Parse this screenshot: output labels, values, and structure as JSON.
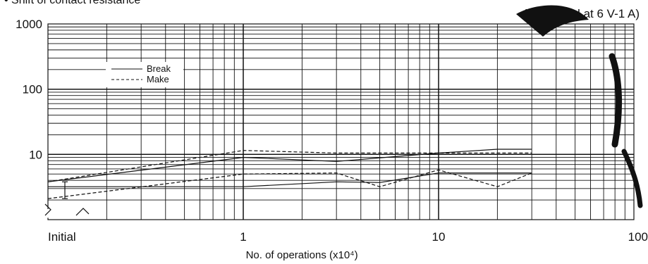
{
  "header": {
    "title": "• Shift of contact resistance",
    "condition": "(measured at 6 V-1 A)"
  },
  "chart_data": {
    "type": "line",
    "title": "• Shift of contact resistance",
    "subtitle": "(measured at 6 V-1 A)",
    "xlabel": "No. of operations (x10⁴)",
    "ylabel": "",
    "x_scale": "log",
    "y_scale": "log",
    "xlim": [
      0.1,
      100
    ],
    "ylim": [
      1,
      1000
    ],
    "x_ticks": [
      {
        "value": 0.1,
        "label": "Initial"
      },
      {
        "value": 1,
        "label": "1"
      },
      {
        "value": 10,
        "label": "10"
      },
      {
        "value": 100,
        "label": "100"
      }
    ],
    "y_ticks": [
      {
        "value": 10,
        "label": "10"
      },
      {
        "value": 100,
        "label": "100"
      },
      {
        "value": 1000,
        "label": "1000"
      }
    ],
    "grid": true,
    "axis_break": "lower-left",
    "legend": {
      "placement": "top-left",
      "entries": [
        {
          "name": "Break",
          "style": "solid"
        },
        {
          "name": "Make",
          "style": "dashed"
        }
      ]
    },
    "series": [
      {
        "name": "Break",
        "style": "solid",
        "role": "max",
        "x": [
          0.1,
          1,
          3,
          10,
          20,
          30
        ],
        "y": [
          3.8,
          9.0,
          7.8,
          10.5,
          12.0,
          12.0
        ]
      },
      {
        "name": "Break",
        "style": "solid",
        "role": "min",
        "x": [
          0.1,
          1,
          3,
          5,
          10,
          20,
          30
        ],
        "y": [
          3.2,
          3.2,
          3.8,
          3.7,
          5.2,
          5.2,
          5.2
        ]
      },
      {
        "name": "Make",
        "style": "dashed",
        "role": "max",
        "x": [
          0.1,
          1,
          3,
          10,
          20,
          30
        ],
        "y": [
          3.8,
          11.5,
          10.5,
          10.5,
          10.5,
          10.5
        ]
      },
      {
        "name": "Make",
        "style": "dashed",
        "role": "min",
        "x": [
          0.1,
          1,
          3,
          5,
          10,
          20,
          30
        ],
        "y": [
          2.1,
          5.0,
          5.2,
          3.2,
          5.8,
          3.2,
          5.2
        ]
      }
    ],
    "initial_range_bar": {
      "x": 0.1,
      "y": [
        2.1,
        3.8
      ]
    },
    "colors": {
      "line": "#111111",
      "grid": "#111111",
      "background": "#ffffff",
      "watermark": "#111111"
    }
  }
}
